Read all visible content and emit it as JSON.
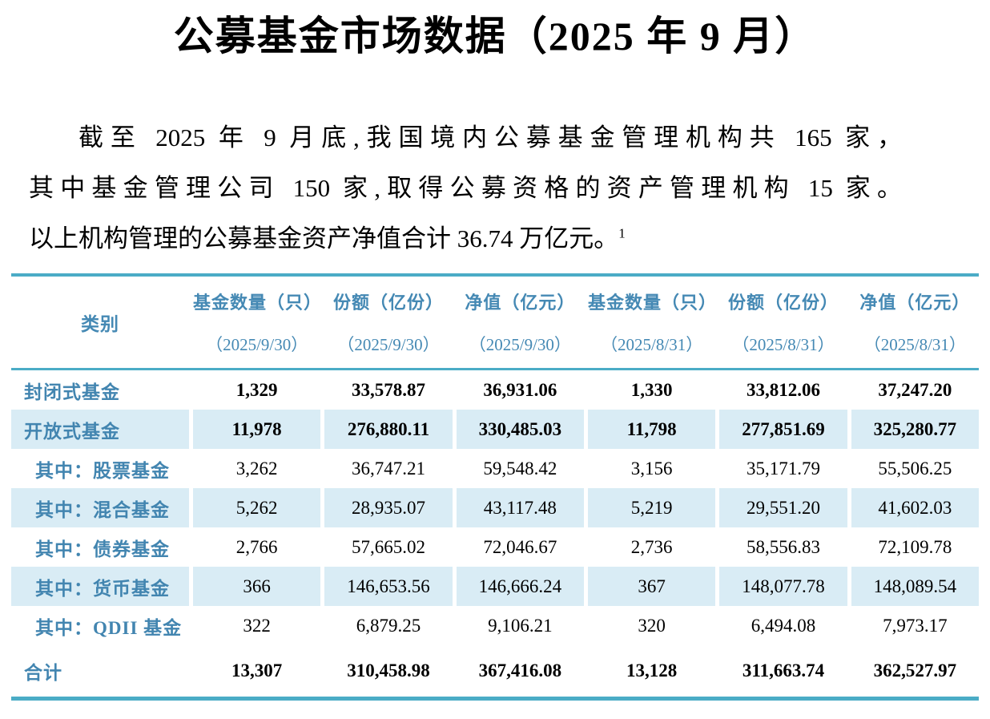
{
  "title": "公募基金市场数据（2025 年 9 月）",
  "paragraph": {
    "lines": [
      "截至 2025 年 9 月底,我国境内公募基金管理机构共 165 家，",
      "其中基金管理公司 150 家,取得公募资格的资产管理机构 15 家。",
      "以上机构管理的公募基金资产净值合计 36.74 万亿元。"
    ],
    "footnote_marker": "1"
  },
  "table": {
    "category_header": "类别",
    "column_groups": [
      {
        "label": "基金数量（只）",
        "date": "（2025/9/30）"
      },
      {
        "label": "份额（亿份）",
        "date": "（2025/9/30）"
      },
      {
        "label": "净值（亿元）",
        "date": "（2025/9/30）"
      },
      {
        "label": "基金数量（只）",
        "date": "（2025/8/31）"
      },
      {
        "label": "份额（亿份）",
        "date": "（2025/8/31）"
      },
      {
        "label": "净值（亿元）",
        "date": "（2025/8/31）"
      }
    ],
    "rows": [
      {
        "category": "封闭式基金",
        "values": [
          "1,329",
          "33,578.87",
          "36,931.06",
          "1,330",
          "33,812.06",
          "37,247.20"
        ]
      },
      {
        "category": "开放式基金",
        "values": [
          "11,978",
          "276,880.11",
          "330,485.03",
          "11,798",
          "277,851.69",
          "325,280.77"
        ]
      },
      {
        "category": "其中：股票基金",
        "values": [
          "3,262",
          "36,747.21",
          "59,548.42",
          "3,156",
          "35,171.79",
          "55,506.25"
        ]
      },
      {
        "category": "其中：混合基金",
        "values": [
          "5,262",
          "28,935.07",
          "43,117.48",
          "5,219",
          "29,551.20",
          "41,602.03"
        ]
      },
      {
        "category": "其中：债券基金",
        "values": [
          "2,766",
          "57,665.02",
          "72,046.67",
          "2,736",
          "58,556.83",
          "72,109.78"
        ]
      },
      {
        "category": "其中：货币基金",
        "values": [
          "366",
          "146,653.56",
          "146,666.24",
          "367",
          "148,077.78",
          "148,089.54"
        ]
      },
      {
        "category": "其中：QDII 基金",
        "values": [
          "322",
          "6,879.25",
          "9,106.21",
          "320",
          "6,494.08",
          "7,973.17"
        ]
      },
      {
        "category": "合计",
        "values": [
          "13,307",
          "310,458.98",
          "367,416.08",
          "13,128",
          "311,663.74",
          "362,527.97"
        ]
      }
    ]
  },
  "colors": {
    "accent": "#4BACC6",
    "header_text": "#4589B4",
    "label_text": "#4285B0",
    "row_shade": "#D9ECF5"
  }
}
